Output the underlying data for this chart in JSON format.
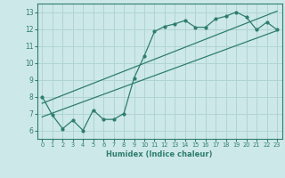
{
  "xlabel": "Humidex (Indice chaleur)",
  "bg_color": "#cde8e8",
  "grid_color": "#b0d4d4",
  "line_color": "#2e7d6e",
  "xlim": [
    -0.5,
    23.5
  ],
  "ylim": [
    5.5,
    13.5
  ],
  "xticks": [
    0,
    1,
    2,
    3,
    4,
    5,
    6,
    7,
    8,
    9,
    10,
    11,
    12,
    13,
    14,
    15,
    16,
    17,
    18,
    19,
    20,
    21,
    22,
    23
  ],
  "yticks": [
    6,
    7,
    8,
    9,
    10,
    11,
    12,
    13
  ],
  "line1_x": [
    0,
    1,
    2,
    3,
    4,
    5,
    6,
    7,
    8,
    9,
    10,
    11,
    12,
    13,
    14,
    15,
    16,
    17,
    18,
    19,
    20,
    21,
    22,
    23
  ],
  "line1_y": [
    8.0,
    6.9,
    6.1,
    6.6,
    6.0,
    7.2,
    6.65,
    6.65,
    7.0,
    9.1,
    10.4,
    11.85,
    12.15,
    12.3,
    12.5,
    12.1,
    12.1,
    12.6,
    12.75,
    13.0,
    12.7,
    11.95,
    12.4,
    11.95
  ],
  "line2_x": [
    0,
    23
  ],
  "line2_y": [
    6.8,
    11.9
  ],
  "line3_x": [
    0,
    23
  ],
  "line3_y": [
    7.6,
    13.05
  ]
}
